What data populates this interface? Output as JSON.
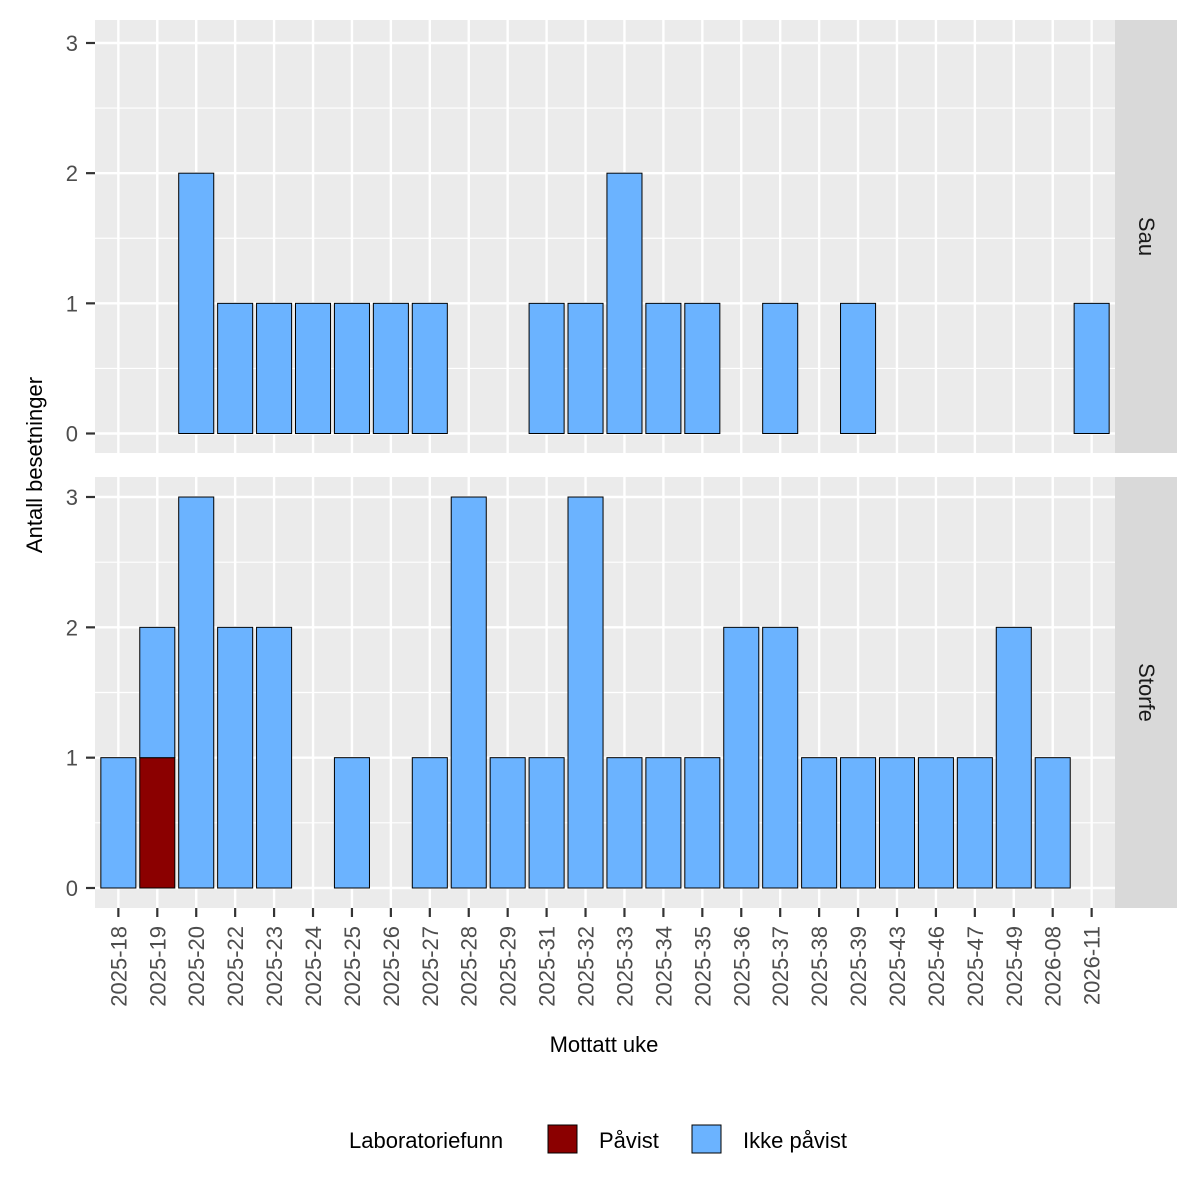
{
  "chart_data": {
    "type": "bar",
    "stacked": true,
    "xlabel": "Mottatt uke",
    "ylabel": "Antall besetninger",
    "ylim": [
      0,
      3
    ],
    "yticks": [
      0,
      1,
      2,
      3
    ],
    "grid": true,
    "legend": {
      "title": "Laboratoriefunn",
      "position": "bottom",
      "entries": [
        {
          "name": "Påvist",
          "color": "#8B0000"
        },
        {
          "name": "Ikke påvist",
          "color": "#6BB3FF"
        }
      ]
    },
    "categories": [
      "2025-18",
      "2025-19",
      "2025-20",
      "2025-22",
      "2025-23",
      "2025-24",
      "2025-25",
      "2025-26",
      "2025-27",
      "2025-28",
      "2025-29",
      "2025-31",
      "2025-32",
      "2025-33",
      "2025-34",
      "2025-35",
      "2025-36",
      "2025-37",
      "2025-38",
      "2025-39",
      "2025-43",
      "2025-46",
      "2025-47",
      "2025-49",
      "2026-08",
      "2026-11"
    ],
    "panels": [
      {
        "label": "Sau",
        "series": [
          {
            "name": "Påvist",
            "values": [
              0,
              0,
              0,
              0,
              0,
              0,
              0,
              0,
              0,
              0,
              0,
              0,
              0,
              0,
              0,
              0,
              0,
              0,
              0,
              0,
              0,
              0,
              0,
              0,
              0,
              0
            ]
          },
          {
            "name": "Ikke påvist",
            "values": [
              0,
              0,
              2,
              1,
              1,
              1,
              1,
              1,
              1,
              0,
              0,
              1,
              1,
              2,
              1,
              1,
              0,
              1,
              0,
              1,
              0,
              0,
              0,
              0,
              0,
              1
            ]
          }
        ]
      },
      {
        "label": "Storfe",
        "series": [
          {
            "name": "Påvist",
            "values": [
              0,
              1,
              0,
              0,
              0,
              0,
              0,
              0,
              0,
              0,
              0,
              0,
              0,
              0,
              0,
              0,
              0,
              0,
              0,
              0,
              0,
              0,
              0,
              0,
              0,
              0
            ]
          },
          {
            "name": "Ikke påvist",
            "values": [
              1,
              1,
              3,
              2,
              2,
              0,
              1,
              0,
              1,
              3,
              1,
              1,
              3,
              1,
              1,
              1,
              2,
              2,
              1,
              1,
              1,
              1,
              1,
              2,
              1,
              0
            ]
          }
        ]
      }
    ]
  }
}
